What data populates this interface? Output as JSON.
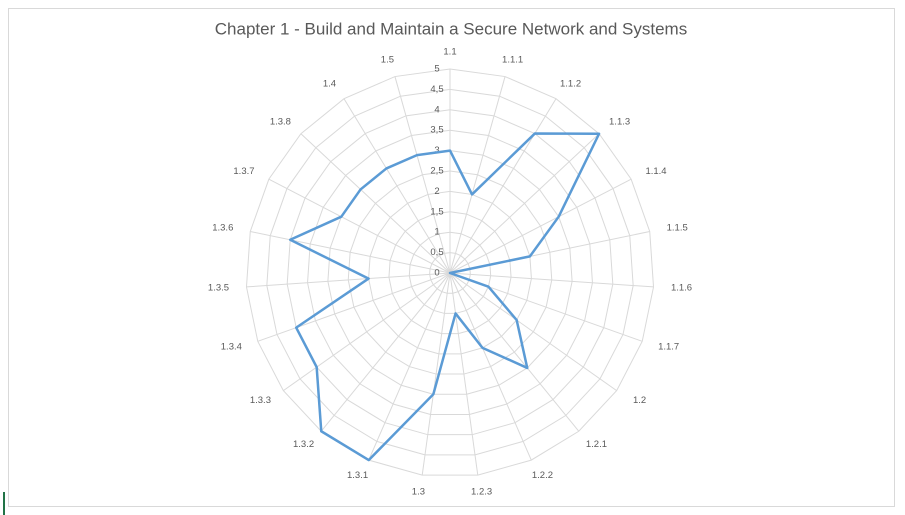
{
  "chart_data": {
    "type": "radar",
    "title": "Chapter 1  - Build and Maintain a Secure Network and Systems",
    "categories": [
      "1.1",
      "1.1.1",
      "1.1.2",
      "1.1.3",
      "1.1.4",
      "1.1.5",
      "1.1.6",
      "1.1.7",
      "1.2",
      "1.2.1",
      "1.2.2",
      "1.2.3",
      "1.3",
      "1.3.1",
      "1.3.2",
      "1.3.3",
      "1.3.4",
      "1.3.5",
      "1.3.6",
      "1.3.7",
      "1.3.8",
      "1.4",
      "1.5"
    ],
    "values": [
      3,
      2,
      4,
      5,
      3,
      2,
      0,
      1,
      2,
      3,
      2,
      1,
      3,
      5,
      5,
      4,
      4,
      2,
      4,
      3,
      3,
      3,
      3
    ],
    "color": "#5b9bd5",
    "ylim": [
      0,
      5
    ],
    "yticks": [
      0,
      {
        "value": 0.5,
        "label": "0,5"
      },
      1,
      {
        "value": 1.5,
        "label": "1,5"
      },
      2,
      {
        "value": 2.5,
        "label": "2,5"
      },
      3,
      {
        "value": 3.5,
        "label": "3,5"
      },
      4,
      {
        "value": 4.5,
        "label": "4,5"
      },
      5
    ],
    "grid": true
  }
}
